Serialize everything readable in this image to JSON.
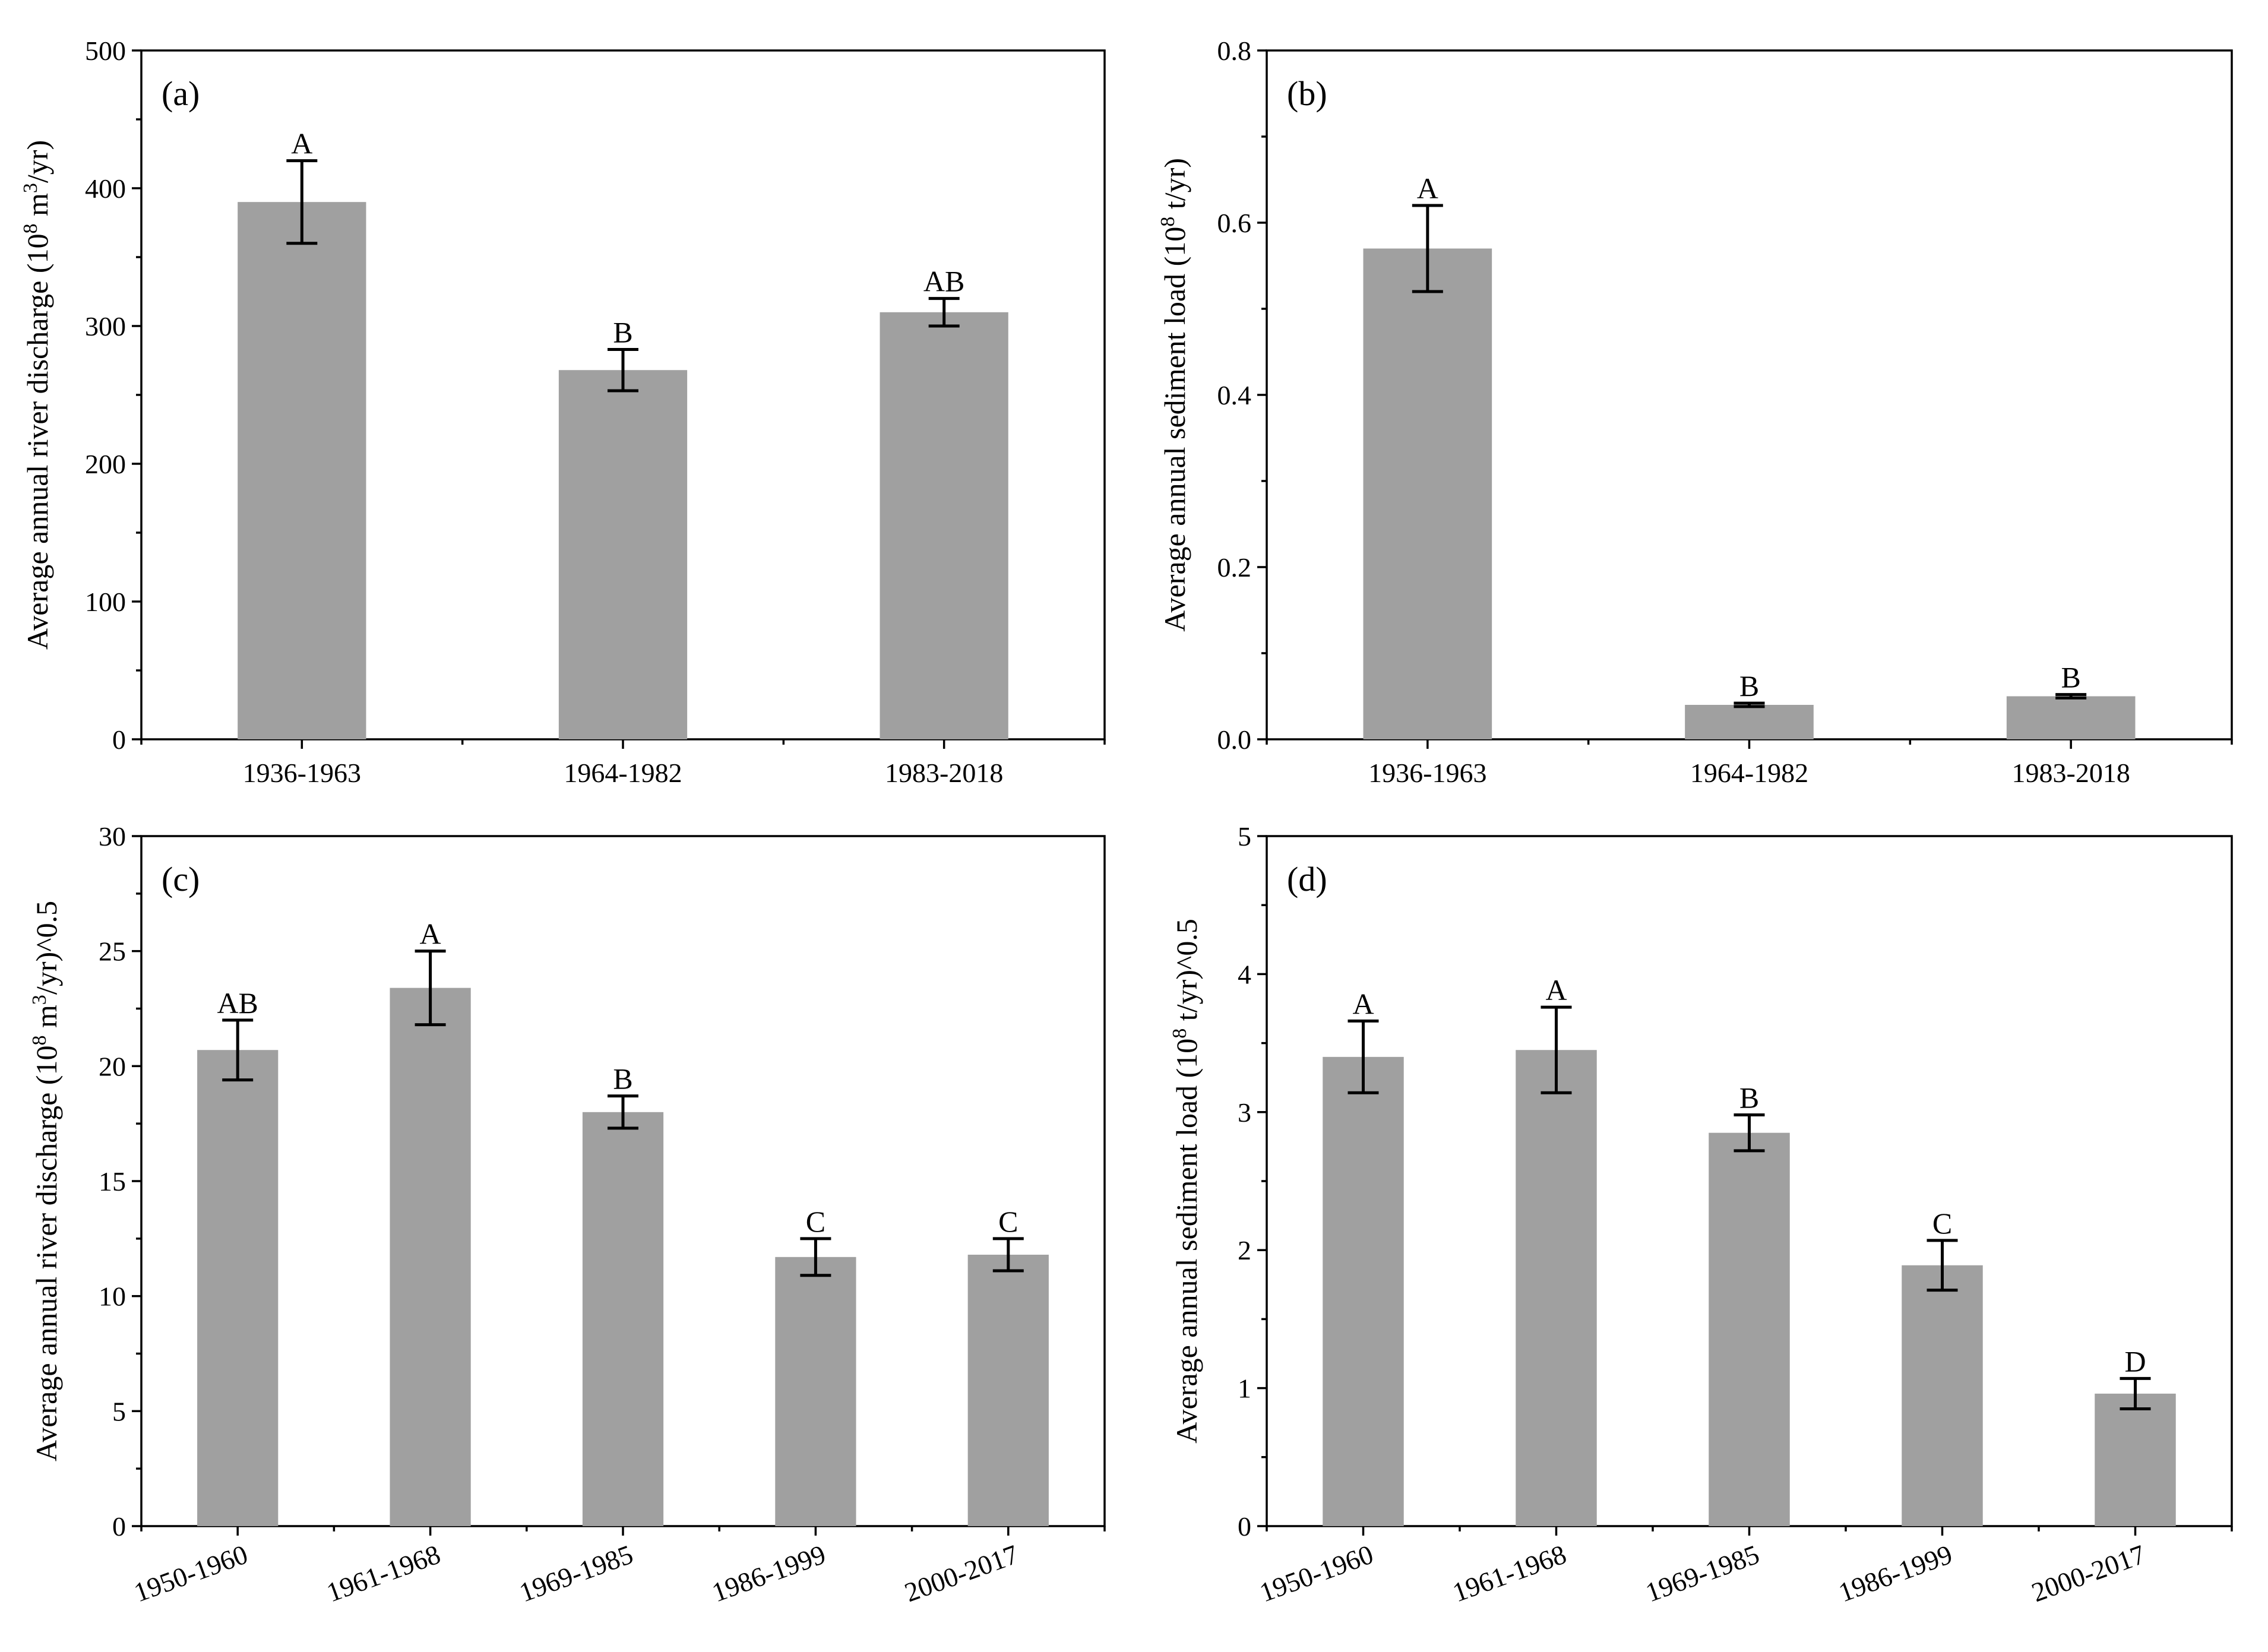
{
  "figure": {
    "ylabel_sup": "8",
    "ylabel_sup3": "3"
  },
  "chart_data": [
    {
      "id": "a",
      "type": "bar",
      "panel_label": "(a)",
      "ylabel_parts": [
        "Average annual river discharge (10",
        "8",
        " m",
        "3",
        "/yr)"
      ],
      "categories": [
        "1936-1963",
        "1964-1982",
        "1983-2018"
      ],
      "values": [
        390,
        268,
        310
      ],
      "errors": [
        30,
        15,
        10
      ],
      "significance": [
        "A",
        "B",
        "AB"
      ],
      "ylim": [
        0,
        500
      ],
      "yticks": [
        0,
        100,
        200,
        300,
        400,
        500
      ],
      "ytick_labels": [
        "0",
        "100",
        "200",
        "300",
        "400",
        "500"
      ],
      "xtick_rotation": 0
    },
    {
      "id": "b",
      "type": "bar",
      "panel_label": "(b)",
      "ylabel_parts": [
        "Average annual sediment load (10",
        "8",
        " t/yr)"
      ],
      "categories": [
        "1936-1963",
        "1964-1982",
        "1983-2018"
      ],
      "values": [
        0.57,
        0.04,
        0.05
      ],
      "errors": [
        0.05,
        0.002,
        0.002
      ],
      "significance": [
        "A",
        "B",
        "B"
      ],
      "ylim": [
        0,
        0.8
      ],
      "yticks": [
        0,
        0.2,
        0.4,
        0.6,
        0.8
      ],
      "ytick_labels": [
        "0.0",
        "0.2",
        "0.4",
        "0.6",
        "0.8"
      ],
      "xtick_rotation": 0
    },
    {
      "id": "c",
      "type": "bar",
      "panel_label": "(c)",
      "ylabel_parts": [
        "Average annual river discharge (10",
        "8",
        " m",
        "3",
        "/yr)^0.5"
      ],
      "categories": [
        "1950-1960",
        "1961-1968",
        "1969-1985",
        "1986-1999",
        "2000-2017"
      ],
      "values": [
        20.7,
        23.4,
        18.0,
        11.7,
        11.8
      ],
      "errors": [
        1.3,
        1.6,
        0.7,
        0.8,
        0.7
      ],
      "significance": [
        "AB",
        "A",
        "B",
        "C",
        "C"
      ],
      "ylim": [
        0,
        30
      ],
      "yticks": [
        0,
        5,
        10,
        15,
        20,
        25,
        30
      ],
      "ytick_labels": [
        "0",
        "5",
        "10",
        "15",
        "20",
        "25",
        "30"
      ],
      "xtick_rotation": -20
    },
    {
      "id": "d",
      "type": "bar",
      "panel_label": "(d)",
      "ylabel_parts": [
        "Average annual sediment load (10",
        "8",
        " t/yr)^0.5"
      ],
      "categories": [
        "1950-1960",
        "1961-1968",
        "1969-1985",
        "1986-1999",
        "2000-2017"
      ],
      "values": [
        3.4,
        3.45,
        2.85,
        1.89,
        0.96
      ],
      "errors": [
        0.26,
        0.31,
        0.13,
        0.18,
        0.11
      ],
      "significance": [
        "A",
        "A",
        "B",
        "C",
        "D"
      ],
      "ylim": [
        0,
        5
      ],
      "yticks": [
        0,
        1,
        2,
        3,
        4,
        5
      ],
      "ytick_labels": [
        "0",
        "1",
        "2",
        "3",
        "4",
        "5"
      ],
      "xtick_rotation": -20
    }
  ]
}
